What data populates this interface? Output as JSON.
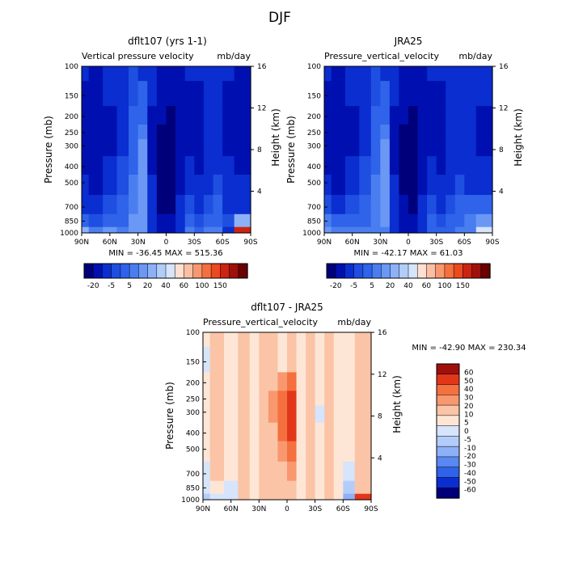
{
  "figure": {
    "title": "DJF"
  },
  "palettes": {
    "main": [
      "#00007a",
      "#0010b0",
      "#0a2ed0",
      "#1f4fe0",
      "#2e63ea",
      "#4a7ef0",
      "#6a98f4",
      "#8db1f7",
      "#b3cdfa",
      "#d6e4fc",
      "#fde0cf",
      "#fcbfa3",
      "#f9976f",
      "#f5703f",
      "#ea4a1e",
      "#cc2412",
      "#a0100a",
      "#6a0000"
    ],
    "diff": [
      "#00007a",
      "#0a2ed0",
      "#2e63ea",
      "#5a88f2",
      "#8db1f7",
      "#b3cdfa",
      "#d6e4fc",
      "#fde6d6",
      "#fbc4a6",
      "#f9976f",
      "#f5703f",
      "#e2361a",
      "#a0100a"
    ]
  },
  "chart_data": [
    {
      "type": "heatmap",
      "panel": "model",
      "title": "dflt107 (yrs 1-1)",
      "subtitle_left": "Vertical pressure velocity",
      "subtitle_right": "mb/day",
      "ylabel": "Pressure (mb)",
      "ylabel_right": "Height (km)",
      "x_ticks": [
        "90N",
        "60N",
        "30N",
        "0",
        "30S",
        "60S",
        "90S"
      ],
      "y_ticks": [
        "100",
        "150",
        "200",
        "250",
        "300",
        "400",
        "500",
        "700",
        "850",
        "1000"
      ],
      "y_right_ticks": [
        "16",
        "12",
        "8",
        "4"
      ],
      "stats": "MIN = -36.45   MAX = 515.36",
      "colorbar_labels": [
        "-20",
        "-5",
        "5",
        "20",
        "40",
        "60",
        "100",
        "150"
      ],
      "x_lat": [
        90,
        75,
        60,
        45,
        35,
        25,
        15,
        5,
        -5,
        -15,
        -25,
        -35,
        -45,
        -55,
        -65,
        -80
      ],
      "pressure": [
        100,
        150,
        200,
        250,
        300,
        400,
        500,
        700,
        850,
        1000
      ],
      "values": [
        [
          -10,
          -12,
          -10,
          -8,
          -4,
          -6,
          -9,
          -12,
          -14,
          -12,
          -10,
          -10,
          -8,
          -8,
          -10,
          -12
        ],
        [
          -12,
          -14,
          -10,
          -6,
          -2,
          2,
          -10,
          -16,
          -18,
          -14,
          -12,
          -12,
          -10,
          -8,
          -12,
          -12
        ],
        [
          -14,
          -16,
          -12,
          -6,
          0,
          4,
          -12,
          -20,
          -22,
          -16,
          -12,
          -14,
          -10,
          -8,
          -12,
          -14
        ],
        [
          -14,
          -16,
          -12,
          -6,
          2,
          8,
          -14,
          -24,
          -26,
          -18,
          -12,
          -14,
          -10,
          -8,
          -12,
          -14
        ],
        [
          -14,
          -16,
          -12,
          -6,
          2,
          10,
          -14,
          -26,
          -28,
          -18,
          -12,
          -14,
          -10,
          -8,
          -12,
          -14
        ],
        [
          -12,
          -14,
          -10,
          -4,
          4,
          12,
          -12,
          -28,
          -30,
          -16,
          -10,
          -12,
          -8,
          -6,
          -10,
          -12
        ],
        [
          -10,
          -12,
          -8,
          -2,
          6,
          14,
          -10,
          -26,
          -28,
          -14,
          -8,
          -10,
          -6,
          -4,
          -8,
          -10
        ],
        [
          -6,
          -8,
          -4,
          0,
          8,
          12,
          -8,
          -22,
          -24,
          -10,
          -4,
          -6,
          -2,
          0,
          -6,
          -8
        ],
        [
          4,
          -4,
          2,
          4,
          10,
          14,
          -6,
          -20,
          -20,
          -8,
          0,
          -2,
          2,
          4,
          -4,
          20
        ],
        [
          20,
          8,
          10,
          8,
          12,
          10,
          -10,
          -18,
          -18,
          -6,
          6,
          4,
          6,
          8,
          -6,
          150
        ]
      ]
    },
    {
      "type": "heatmap",
      "panel": "obs",
      "title": "JRA25",
      "subtitle_left": "Pressure_vertical_velocity",
      "subtitle_right": "mb/day",
      "ylabel": "Pressure (mb)",
      "ylabel_right": "Height (km)",
      "x_ticks": [
        "90N",
        "60N",
        "30N",
        "0",
        "30S",
        "60S",
        "90S"
      ],
      "y_ticks": [
        "100",
        "150",
        "200",
        "250",
        "300",
        "400",
        "500",
        "700",
        "850",
        "1000"
      ],
      "y_right_ticks": [
        "16",
        "12",
        "8",
        "4"
      ],
      "stats": "MIN = -42.17   MAX = 61.03",
      "colorbar_labels": [
        "-20",
        "-5",
        "5",
        "20",
        "40",
        "60",
        "100",
        "150"
      ],
      "x_lat": [
        90,
        75,
        60,
        45,
        35,
        25,
        15,
        5,
        -5,
        -15,
        -25,
        -35,
        -45,
        -55,
        -65,
        -80
      ],
      "pressure": [
        100,
        150,
        200,
        250,
        300,
        400,
        500,
        700,
        850,
        1000
      ],
      "values": [
        [
          -10,
          -12,
          -10,
          -8,
          -4,
          -6,
          -9,
          -12,
          -14,
          -12,
          -10,
          -10,
          -8,
          -8,
          -10,
          -10
        ],
        [
          -12,
          -14,
          -10,
          -6,
          -2,
          2,
          -10,
          -16,
          -18,
          -14,
          -12,
          -12,
          -10,
          -8,
          -10,
          -10
        ],
        [
          -14,
          -16,
          -12,
          -6,
          0,
          4,
          -12,
          -20,
          -22,
          -16,
          -12,
          -14,
          -10,
          -8,
          -10,
          -12
        ],
        [
          -14,
          -16,
          -12,
          -6,
          2,
          8,
          -14,
          -24,
          -28,
          -18,
          -12,
          -14,
          -10,
          -8,
          -10,
          -12
        ],
        [
          -14,
          -16,
          -12,
          -6,
          2,
          10,
          -14,
          -28,
          -30,
          -18,
          -12,
          -14,
          -10,
          -8,
          -10,
          -12
        ],
        [
          -12,
          -14,
          -10,
          -4,
          4,
          12,
          -12,
          -30,
          -32,
          -16,
          -10,
          -12,
          -8,
          -6,
          -8,
          -10
        ],
        [
          -10,
          -12,
          -8,
          -2,
          6,
          14,
          -10,
          -26,
          -28,
          -14,
          -8,
          -10,
          -6,
          -4,
          -6,
          -8
        ],
        [
          -4,
          -8,
          -4,
          0,
          8,
          10,
          -8,
          -20,
          -22,
          -10,
          -4,
          -6,
          -2,
          0,
          0,
          4
        ],
        [
          8,
          0,
          4,
          4,
          8,
          10,
          -6,
          -16,
          -16,
          -8,
          0,
          -2,
          2,
          4,
          6,
          10
        ],
        [
          14,
          8,
          8,
          6,
          8,
          8,
          -6,
          -14,
          -14,
          -6,
          2,
          2,
          4,
          6,
          8,
          40
        ]
      ]
    },
    {
      "type": "heatmap",
      "panel": "diff",
      "title": "dflt107 - JRA25",
      "subtitle_left": "Pressure_vertical_velocity",
      "subtitle_right": "mb/day",
      "ylabel": "Pressure (mb)",
      "ylabel_right": "Height (km)",
      "x_ticks": [
        "90N",
        "60N",
        "30N",
        "0",
        "30S",
        "60S",
        "90S"
      ],
      "y_ticks": [
        "100",
        "150",
        "200",
        "250",
        "300",
        "400",
        "500",
        "700",
        "850",
        "1000"
      ],
      "y_right_ticks": [
        "16",
        "12",
        "8",
        "4"
      ],
      "stats": "MIN = -42.90   MAX = 230.34",
      "colorbar_labels": [
        "60",
        "50",
        "40",
        "30",
        "20",
        "10",
        "5",
        "0",
        "-5",
        "-10",
        "-20",
        "-30",
        "-40",
        "-50",
        "-60"
      ],
      "x_lat": [
        90,
        75,
        60,
        45,
        35,
        25,
        15,
        5,
        -5,
        -15,
        -25,
        -35,
        -45,
        -55,
        -65,
        -80
      ],
      "pressure": [
        100,
        150,
        200,
        250,
        300,
        400,
        500,
        700,
        850,
        1000
      ],
      "values": [
        [
          -2,
          1,
          -1,
          2,
          -1,
          2,
          1,
          -1,
          2,
          -1,
          1,
          -2,
          1,
          -1,
          -2,
          1
        ],
        [
          -8,
          1,
          -2,
          3,
          -2,
          2,
          2,
          -2,
          3,
          -2,
          2,
          -2,
          1,
          -2,
          -3,
          1
        ],
        [
          -2,
          2,
          -3,
          3,
          -3,
          3,
          4,
          8,
          14,
          -3,
          3,
          -4,
          2,
          -2,
          -3,
          2
        ],
        [
          -2,
          2,
          -3,
          4,
          -3,
          3,
          5,
          12,
          20,
          -3,
          3,
          -5,
          2,
          -3,
          -3,
          2
        ],
        [
          -3,
          2,
          -4,
          4,
          -3,
          4,
          5,
          14,
          24,
          -2,
          4,
          -6,
          2,
          -3,
          -3,
          2
        ],
        [
          -4,
          2,
          -4,
          4,
          -3,
          4,
          4,
          12,
          20,
          -2,
          4,
          -5,
          2,
          -3,
          -2,
          2
        ],
        [
          -5,
          2,
          -4,
          3,
          -3,
          3,
          3,
          8,
          12,
          -2,
          3,
          -4,
          2,
          -3,
          -2,
          2
        ],
        [
          -8,
          2,
          -3,
          3,
          -2,
          3,
          2,
          4,
          6,
          -2,
          3,
          -3,
          2,
          -2,
          -6,
          2
        ],
        [
          -10,
          -5,
          -6,
          4,
          -3,
          3,
          3,
          4,
          4,
          -2,
          3,
          -3,
          2,
          -2,
          -12,
          2
        ],
        [
          -20,
          -8,
          -10,
          3,
          -4,
          3,
          3,
          4,
          3,
          -2,
          3,
          -3,
          2,
          -2,
          -30,
          20
        ]
      ]
    }
  ]
}
